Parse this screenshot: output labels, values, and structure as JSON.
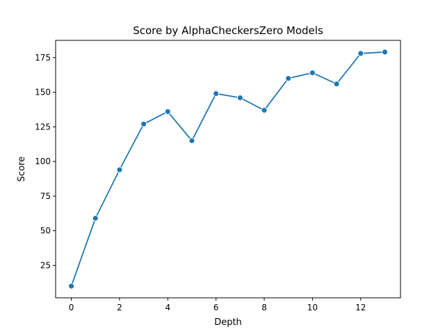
{
  "chart_data": {
    "type": "line",
    "title": "Score by AlphaCheckersZero Models",
    "xlabel": "Depth",
    "ylabel": "Score",
    "x": [
      0,
      1,
      2,
      3,
      4,
      5,
      6,
      7,
      8,
      9,
      10,
      11,
      12,
      13
    ],
    "series": [
      {
        "values": [
          10,
          59,
          94,
          127,
          136,
          115,
          149,
          146,
          137,
          160,
          164,
          156,
          178,
          179
        ]
      }
    ],
    "xticks": [
      0,
      2,
      4,
      6,
      8,
      10,
      12
    ],
    "yticks": [
      25,
      50,
      75,
      100,
      125,
      150,
      175
    ],
    "xlim": [
      -0.65,
      13.65
    ],
    "ylim": [
      1.55,
      187.45
    ],
    "grid": false,
    "legend": "none",
    "colors": {
      "line": "#1f77b4",
      "marker": "#1f77b4",
      "marker_edge": "#ffffff"
    }
  }
}
